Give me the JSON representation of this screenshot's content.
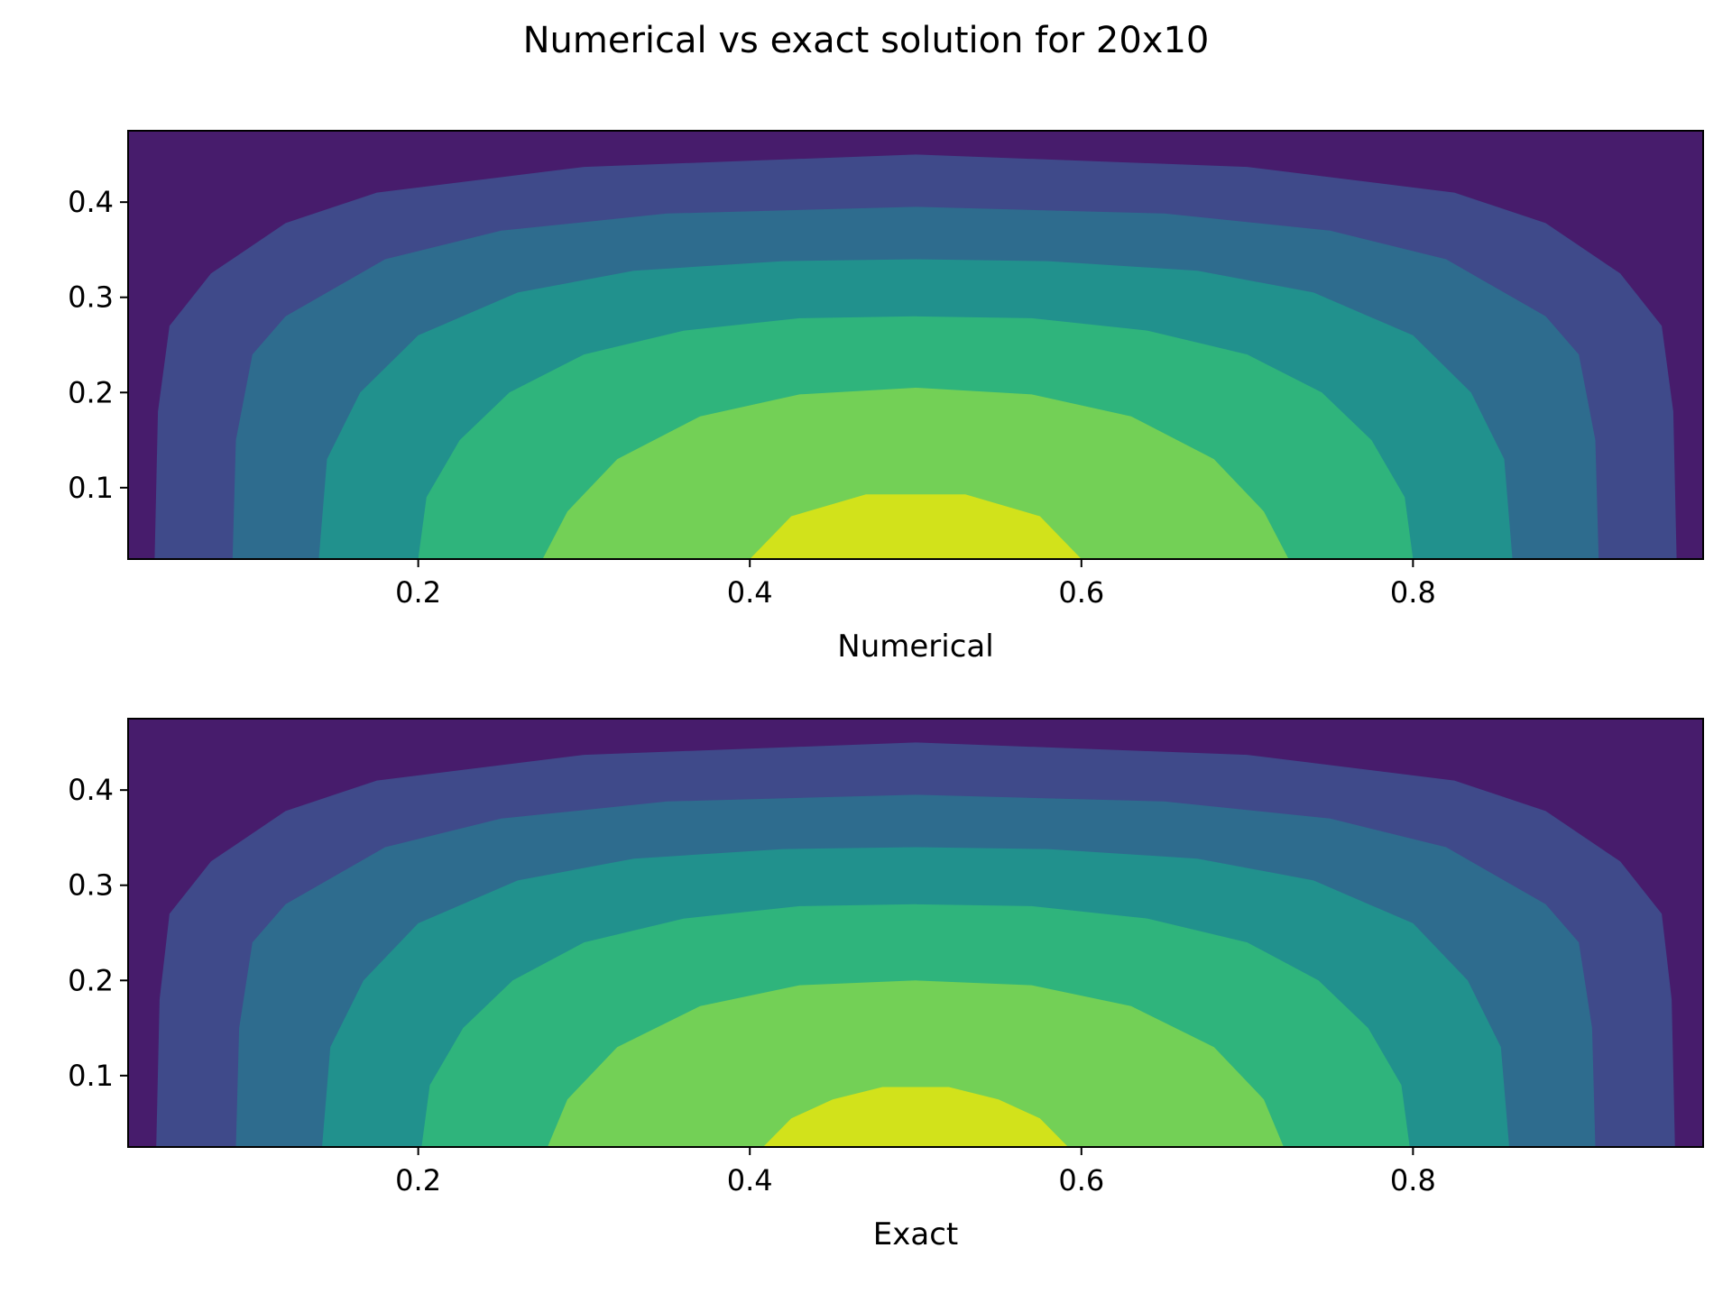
{
  "figure": {
    "title": "Numerical vs exact solution for 20x10"
  },
  "colors": {
    "levels": [
      "#471c6c",
      "#3f4a8a",
      "#2e6c8e",
      "#21918d",
      "#2fb47c",
      "#73d056",
      "#d2e21b"
    ],
    "frame": "#000000",
    "background": "#ffffff"
  },
  "chart_data": [
    {
      "type": "contour",
      "title": "",
      "xlabel": "Numerical",
      "ylabel": "",
      "xlim": [
        0.025,
        0.975
      ],
      "ylim": [
        0.025,
        0.475
      ],
      "xticks": [
        0.2,
        0.4,
        0.6,
        0.8
      ],
      "xtick_labels": [
        "0.2",
        "0.4",
        "0.6",
        "0.8"
      ],
      "yticks": [
        0.1,
        0.2,
        0.3,
        0.4
      ],
      "ytick_labels": [
        "0.1",
        "0.2",
        "0.3",
        "0.4"
      ],
      "grid": false,
      "legend": "none",
      "contour_bands": [
        {
          "level": 1,
          "outer_boundary": [
            [
              0.041,
              0.025
            ],
            [
              0.043,
              0.18
            ],
            [
              0.05,
              0.27
            ],
            [
              0.075,
              0.325
            ],
            [
              0.12,
              0.378
            ],
            [
              0.175,
              0.41
            ],
            [
              0.3,
              0.437
            ],
            [
              0.5,
              0.45
            ],
            [
              0.7,
              0.437
            ],
            [
              0.825,
              0.41
            ],
            [
              0.88,
              0.378
            ],
            [
              0.925,
              0.325
            ],
            [
              0.95,
              0.27
            ],
            [
              0.957,
              0.18
            ],
            [
              0.959,
              0.025
            ]
          ]
        },
        {
          "level": 2,
          "outer_boundary": [
            [
              0.088,
              0.025
            ],
            [
              0.09,
              0.15
            ],
            [
              0.1,
              0.24
            ],
            [
              0.12,
              0.28
            ],
            [
              0.18,
              0.34
            ],
            [
              0.25,
              0.37
            ],
            [
              0.35,
              0.388
            ],
            [
              0.5,
              0.395
            ],
            [
              0.65,
              0.388
            ],
            [
              0.75,
              0.37
            ],
            [
              0.82,
              0.34
            ],
            [
              0.88,
              0.28
            ],
            [
              0.9,
              0.24
            ],
            [
              0.91,
              0.15
            ],
            [
              0.912,
              0.025
            ]
          ]
        },
        {
          "level": 3,
          "outer_boundary": [
            [
              0.14,
              0.025
            ],
            [
              0.145,
              0.13
            ],
            [
              0.165,
              0.2
            ],
            [
              0.2,
              0.26
            ],
            [
              0.26,
              0.305
            ],
            [
              0.33,
              0.328
            ],
            [
              0.42,
              0.338
            ],
            [
              0.5,
              0.34
            ],
            [
              0.58,
              0.338
            ],
            [
              0.67,
              0.328
            ],
            [
              0.74,
              0.305
            ],
            [
              0.8,
              0.26
            ],
            [
              0.835,
              0.2
            ],
            [
              0.855,
              0.13
            ],
            [
              0.86,
              0.025
            ]
          ]
        },
        {
          "level": 4,
          "outer_boundary": [
            [
              0.2,
              0.025
            ],
            [
              0.205,
              0.09
            ],
            [
              0.225,
              0.15
            ],
            [
              0.255,
              0.2
            ],
            [
              0.3,
              0.24
            ],
            [
              0.36,
              0.265
            ],
            [
              0.43,
              0.278
            ],
            [
              0.5,
              0.28
            ],
            [
              0.57,
              0.278
            ],
            [
              0.64,
              0.265
            ],
            [
              0.7,
              0.24
            ],
            [
              0.745,
              0.2
            ],
            [
              0.775,
              0.15
            ],
            [
              0.795,
              0.09
            ],
            [
              0.8,
              0.025
            ]
          ]
        },
        {
          "level": 5,
          "outer_boundary": [
            [
              0.275,
              0.025
            ],
            [
              0.29,
              0.075
            ],
            [
              0.32,
              0.13
            ],
            [
              0.37,
              0.175
            ],
            [
              0.43,
              0.198
            ],
            [
              0.5,
              0.205
            ],
            [
              0.57,
              0.198
            ],
            [
              0.63,
              0.175
            ],
            [
              0.68,
              0.13
            ],
            [
              0.71,
              0.075
            ],
            [
              0.725,
              0.025
            ]
          ]
        },
        {
          "level": 6,
          "outer_boundary": [
            [
              0.4,
              0.025
            ],
            [
              0.425,
              0.07
            ],
            [
              0.47,
              0.093
            ],
            [
              0.53,
              0.093
            ],
            [
              0.575,
              0.07
            ],
            [
              0.6,
              0.025
            ]
          ]
        }
      ]
    },
    {
      "type": "contour",
      "title": "",
      "xlabel": "Exact",
      "ylabel": "",
      "xlim": [
        0.025,
        0.975
      ],
      "ylim": [
        0.025,
        0.475
      ],
      "xticks": [
        0.2,
        0.4,
        0.6,
        0.8
      ],
      "xtick_labels": [
        "0.2",
        "0.4",
        "0.6",
        "0.8"
      ],
      "yticks": [
        0.1,
        0.2,
        0.3,
        0.4
      ],
      "ytick_labels": [
        "0.1",
        "0.2",
        "0.3",
        "0.4"
      ],
      "grid": false,
      "legend": "none",
      "contour_bands": [
        {
          "level": 1,
          "outer_boundary": [
            [
              0.042,
              0.025
            ],
            [
              0.044,
              0.18
            ],
            [
              0.05,
              0.27
            ],
            [
              0.075,
              0.325
            ],
            [
              0.12,
              0.378
            ],
            [
              0.175,
              0.41
            ],
            [
              0.3,
              0.437
            ],
            [
              0.5,
              0.45
            ],
            [
              0.7,
              0.437
            ],
            [
              0.825,
              0.41
            ],
            [
              0.88,
              0.378
            ],
            [
              0.925,
              0.325
            ],
            [
              0.95,
              0.27
            ],
            [
              0.956,
              0.18
            ],
            [
              0.958,
              0.025
            ]
          ]
        },
        {
          "level": 2,
          "outer_boundary": [
            [
              0.09,
              0.025
            ],
            [
              0.092,
              0.15
            ],
            [
              0.1,
              0.24
            ],
            [
              0.12,
              0.28
            ],
            [
              0.18,
              0.34
            ],
            [
              0.25,
              0.37
            ],
            [
              0.35,
              0.388
            ],
            [
              0.5,
              0.395
            ],
            [
              0.65,
              0.388
            ],
            [
              0.75,
              0.37
            ],
            [
              0.82,
              0.34
            ],
            [
              0.88,
              0.28
            ],
            [
              0.9,
              0.24
            ],
            [
              0.908,
              0.15
            ],
            [
              0.91,
              0.025
            ]
          ]
        },
        {
          "level": 3,
          "outer_boundary": [
            [
              0.142,
              0.025
            ],
            [
              0.147,
              0.13
            ],
            [
              0.167,
              0.2
            ],
            [
              0.2,
              0.26
            ],
            [
              0.26,
              0.305
            ],
            [
              0.33,
              0.328
            ],
            [
              0.42,
              0.338
            ],
            [
              0.5,
              0.34
            ],
            [
              0.58,
              0.338
            ],
            [
              0.67,
              0.328
            ],
            [
              0.74,
              0.305
            ],
            [
              0.8,
              0.26
            ],
            [
              0.833,
              0.2
            ],
            [
              0.853,
              0.13
            ],
            [
              0.858,
              0.025
            ]
          ]
        },
        {
          "level": 4,
          "outer_boundary": [
            [
              0.202,
              0.025
            ],
            [
              0.207,
              0.09
            ],
            [
              0.227,
              0.15
            ],
            [
              0.257,
              0.2
            ],
            [
              0.3,
              0.24
            ],
            [
              0.36,
              0.265
            ],
            [
              0.43,
              0.278
            ],
            [
              0.5,
              0.28
            ],
            [
              0.57,
              0.278
            ],
            [
              0.64,
              0.265
            ],
            [
              0.7,
              0.24
            ],
            [
              0.743,
              0.2
            ],
            [
              0.773,
              0.15
            ],
            [
              0.793,
              0.09
            ],
            [
              0.798,
              0.025
            ]
          ]
        },
        {
          "level": 5,
          "outer_boundary": [
            [
              0.278,
              0.025
            ],
            [
              0.29,
              0.075
            ],
            [
              0.32,
              0.13
            ],
            [
              0.37,
              0.173
            ],
            [
              0.43,
              0.195
            ],
            [
              0.5,
              0.2
            ],
            [
              0.57,
              0.195
            ],
            [
              0.63,
              0.173
            ],
            [
              0.68,
              0.13
            ],
            [
              0.71,
              0.075
            ],
            [
              0.722,
              0.025
            ]
          ]
        },
        {
          "level": 6,
          "outer_boundary": [
            [
              0.408,
              0.025
            ],
            [
              0.425,
              0.055
            ],
            [
              0.45,
              0.075
            ],
            [
              0.48,
              0.088
            ],
            [
              0.52,
              0.088
            ],
            [
              0.55,
              0.075
            ],
            [
              0.575,
              0.055
            ],
            [
              0.592,
              0.025
            ]
          ]
        }
      ]
    }
  ]
}
